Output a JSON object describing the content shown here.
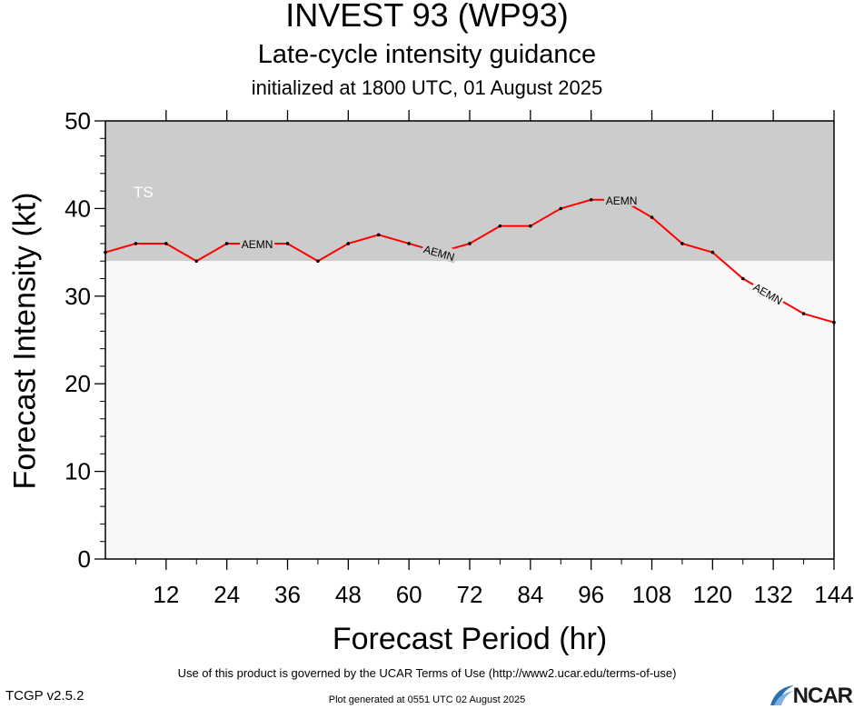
{
  "header": {
    "title": "INVEST 93 (WP93)",
    "subtitle": "Late-cycle intensity guidance",
    "initialized": "initialized at 1800 UTC, 01 August 2025"
  },
  "chart_data": {
    "type": "line",
    "xlabel": "Forecast Period (hr)",
    "ylabel": "Forecast Intensity (kt)",
    "xlim": [
      0,
      144
    ],
    "ylim": [
      0,
      50
    ],
    "x_ticks": [
      "12",
      "24",
      "36",
      "48",
      "60",
      "72",
      "84",
      "96",
      "108",
      "120",
      "132",
      "144"
    ],
    "y_ticks": [
      "0",
      "10",
      "20",
      "30",
      "40",
      "50"
    ],
    "bands": [
      {
        "label": "TS",
        "from": 34,
        "to": 50,
        "color": "#cccccc"
      },
      {
        "label": "",
        "from": 0,
        "to": 34,
        "color": "#f8f8f8"
      }
    ],
    "series": [
      {
        "name": "AEMN",
        "color": "#ff0000",
        "x": [
          0,
          6,
          12,
          18,
          24,
          30,
          36,
          42,
          48,
          54,
          60,
          66,
          72,
          78,
          84,
          90,
          96,
          102,
          108,
          114,
          120,
          126,
          132,
          138,
          144
        ],
        "y": [
          35,
          36,
          36,
          34,
          36,
          36,
          36,
          34,
          36,
          37,
          36,
          35,
          36,
          38,
          38,
          40,
          41,
          41,
          39,
          36,
          35,
          32,
          30,
          28,
          27
        ],
        "label_at": [
          30,
          66,
          102,
          131
        ]
      }
    ]
  },
  "footer": {
    "terms": "Use of this product is governed by the UCAR Terms of Use (http://www2.ucar.edu/terms-of-use)",
    "generated": "Plot generated at 0551 UTC   02 August 2025",
    "version": "TCGP v2.5.2",
    "logo_text": "NCAR"
  }
}
